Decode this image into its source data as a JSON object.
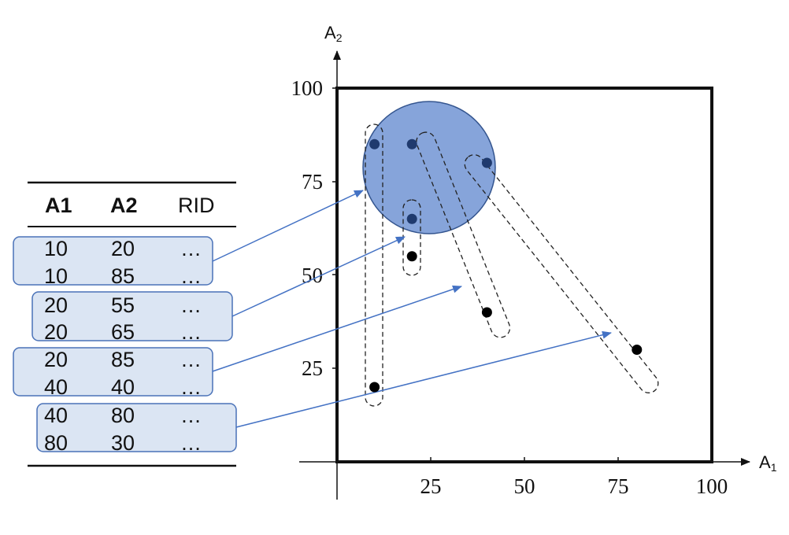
{
  "table": {
    "headers": [
      "A1",
      "A2",
      "RID"
    ],
    "pages": [
      {
        "rows": [
          {
            "a1": "10",
            "a2": "20",
            "rid": "…"
          },
          {
            "a1": "10",
            "a2": "85",
            "rid": "…"
          }
        ]
      },
      {
        "rows": [
          {
            "a1": "20",
            "a2": "55",
            "rid": "…"
          },
          {
            "a1": "20",
            "a2": "65",
            "rid": "…"
          }
        ]
      },
      {
        "rows": [
          {
            "a1": "20",
            "a2": "85",
            "rid": "…"
          },
          {
            "a1": "40",
            "a2": "40",
            "rid": "…"
          }
        ]
      },
      {
        "rows": [
          {
            "a1": "40",
            "a2": "80",
            "rid": "…"
          },
          {
            "a1": "80",
            "a2": "30",
            "rid": "…"
          }
        ]
      }
    ]
  },
  "plot": {
    "x_axis_label": "A",
    "x_axis_sub": "1",
    "y_axis_label": "A",
    "y_axis_sub": "2",
    "x_ticks": [
      "25",
      "50",
      "75",
      "100"
    ],
    "y_ticks": [
      "25",
      "50",
      "75",
      "100"
    ],
    "domain": [
      0,
      100
    ],
    "points": [
      [
        10,
        20
      ],
      [
        10,
        85
      ],
      [
        20,
        55
      ],
      [
        20,
        65
      ],
      [
        20,
        85
      ],
      [
        40,
        40
      ],
      [
        40,
        80
      ],
      [
        80,
        30
      ]
    ],
    "query_circle": {
      "center": [
        25,
        79
      ],
      "radius": 17.5
    },
    "colors": {
      "box_fill": "#dbe5f3",
      "box_stroke": "#4a72b8",
      "arrow": "#4472c4",
      "circle_fill": "#7f9fd8",
      "point_in": "#1f3a6e",
      "point_out": "#000000"
    }
  }
}
